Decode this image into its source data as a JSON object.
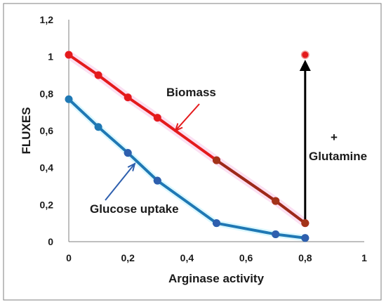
{
  "chart_data": {
    "type": "line",
    "xlabel": "Arginase activity",
    "ylabel": "FLUXES",
    "xlim": [
      0,
      1
    ],
    "ylim": [
      0,
      1.2
    ],
    "x_ticks": [
      "0",
      "0,2",
      "0,4",
      "0,6",
      "0,8",
      "1"
    ],
    "y_ticks": [
      "0",
      "0,2",
      "0,4",
      "0,6",
      "0,8",
      "1",
      "1,2"
    ],
    "grid": false,
    "series": [
      {
        "name": "Biomass",
        "color": "#e41a1c",
        "x": [
          0,
          0.1,
          0.2,
          0.3,
          0.5,
          0.7,
          0.8
        ],
        "y": [
          1.01,
          0.9,
          0.78,
          0.67,
          0.44,
          0.22,
          0.1
        ]
      },
      {
        "name": "Glucose uptake",
        "color": "#1f78b4",
        "x": [
          0,
          0.1,
          0.2,
          0.3,
          0.5,
          0.7,
          0.8
        ],
        "y": [
          0.77,
          0.62,
          0.48,
          0.33,
          0.1,
          0.04,
          0.02
        ]
      }
    ],
    "extra_points": [
      {
        "x": 0.8,
        "y": 1.01,
        "color": "#e41a1c"
      }
    ],
    "annotations": [
      {
        "text": "+",
        "type": "text"
      },
      {
        "text": "Glutamine",
        "type": "text"
      }
    ]
  }
}
